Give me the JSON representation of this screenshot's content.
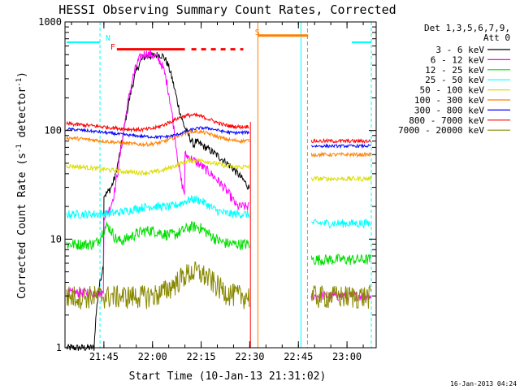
{
  "chart_data": {
    "type": "line",
    "title": "HESSI Observing Summary Count Rates, Corrected",
    "xlabel": "Start Time (10-Jan-13 21:31:02)",
    "ylabel_main": "Corrected Count Rate (s",
    "ylabel_sup1": "-1",
    "ylabel_mid": " detector",
    "ylabel_sup2": "-1",
    "ylabel_end": ")",
    "yscale": "log",
    "ylim": [
      1,
      1000
    ],
    "xlim_minutes": [
      -12,
      84
    ],
    "x_ticks": [
      {
        "label": "21:45",
        "value": 0
      },
      {
        "label": "22:00",
        "value": 15
      },
      {
        "label": "22:15",
        "value": 30
      },
      {
        "label": "22:30",
        "value": 45
      },
      {
        "label": "22:45",
        "value": 60
      },
      {
        "label": "23:00",
        "value": 75
      }
    ],
    "y_ticks": [
      {
        "label": "1",
        "value": 1
      },
      {
        "label": "10",
        "value": 10
      },
      {
        "label": "100",
        "value": 100
      },
      {
        "label": "1000",
        "value": 1000
      }
    ],
    "legend_header": [
      "Det 1,3,5,6,7,9,",
      "Att 0"
    ],
    "legend_position": "top-right",
    "series": [
      {
        "name": "3 - 6 keV",
        "color": "#000000"
      },
      {
        "name": "6 - 12 keV",
        "color": "#ff00ff"
      },
      {
        "name": "12 - 25 keV",
        "color": "#00dd00"
      },
      {
        "name": "25 - 50 keV",
        "color": "#00ffff"
      },
      {
        "name": "50 - 100 keV",
        "color": "#dddd00"
      },
      {
        "name": "100 - 300 keV",
        "color": "#ff8000"
      },
      {
        "name": "300 - 800 keV",
        "color": "#0000ff"
      },
      {
        "name": "800 - 7000 keV",
        "color": "#ff0000"
      },
      {
        "name": "7000 - 20000 keV",
        "color": "#888800"
      }
    ],
    "flag_labels": {
      "N": "N",
      "F": "F",
      "S": "S"
    },
    "footer_date": "16-Jan-2013 04:24"
  }
}
